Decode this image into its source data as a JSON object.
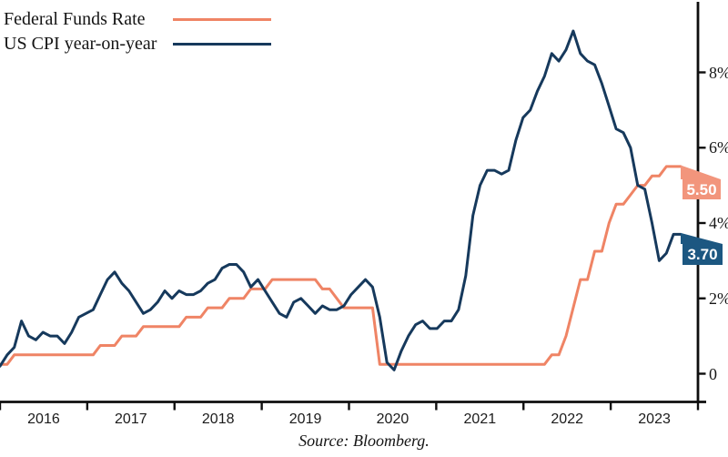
{
  "legend": {
    "items": [
      {
        "label": "Federal Funds Rate",
        "color": "#EF8465"
      },
      {
        "label": "US CPI year-on-year",
        "color": "#16395C"
      }
    ]
  },
  "source": "Source: Bloomberg.",
  "end_labels": {
    "fed": "5.50",
    "cpi": "3.70"
  },
  "colors": {
    "fed_line": "#EF8465",
    "fed_box": "#F2957C",
    "cpi_line": "#16395C",
    "cpi_box": "#1C5781",
    "axis": "#0e0e0e"
  },
  "axis": {
    "y_ticks": [
      {
        "value": 8,
        "label": "8%"
      },
      {
        "value": 6,
        "label": "6%"
      },
      {
        "value": 4,
        "label": "4%"
      },
      {
        "value": 2,
        "label": "2%"
      },
      {
        "value": 0,
        "label": "0"
      }
    ],
    "x_year_labels": [
      "2016",
      "2017",
      "2018",
      "2019",
      "2020",
      "2021",
      "2022",
      "2023"
    ]
  },
  "chart_data": {
    "type": "line",
    "title": "",
    "xlabel": "",
    "ylabel": "%",
    "x_start": "2015-10",
    "x_end": "2023-09",
    "frequency": "monthly",
    "x_tick_labels": [
      "2016",
      "2017",
      "2018",
      "2019",
      "2020",
      "2021",
      "2022",
      "2023"
    ],
    "y_tick_values": [
      0,
      2,
      4,
      6,
      8
    ],
    "ylim": [
      -0.75,
      9.9
    ],
    "grid": false,
    "legend_position": "top-left",
    "end_value_labels": {
      "Federal Funds Rate": 5.5,
      "US CPI year-on-year": 3.7
    },
    "series": [
      {
        "name": "Federal Funds Rate",
        "color": "#EF8465",
        "values": [
          0.25,
          0.25,
          0.5,
          0.5,
          0.5,
          0.5,
          0.5,
          0.5,
          0.5,
          0.5,
          0.5,
          0.5,
          0.5,
          0.5,
          0.75,
          0.75,
          0.75,
          1.0,
          1.0,
          1.0,
          1.25,
          1.25,
          1.25,
          1.25,
          1.25,
          1.25,
          1.5,
          1.5,
          1.5,
          1.75,
          1.75,
          1.75,
          2.0,
          2.0,
          2.0,
          2.25,
          2.25,
          2.25,
          2.5,
          2.5,
          2.5,
          2.5,
          2.5,
          2.5,
          2.5,
          2.25,
          2.25,
          2.0,
          1.75,
          1.75,
          1.75,
          1.75,
          1.75,
          0.25,
          0.25,
          0.25,
          0.25,
          0.25,
          0.25,
          0.25,
          0.25,
          0.25,
          0.25,
          0.25,
          0.25,
          0.25,
          0.25,
          0.25,
          0.25,
          0.25,
          0.25,
          0.25,
          0.25,
          0.25,
          0.25,
          0.25,
          0.25,
          0.5,
          0.5,
          1.0,
          1.75,
          2.5,
          2.5,
          3.25,
          3.25,
          4.0,
          4.5,
          4.5,
          4.75,
          5.0,
          5.0,
          5.25,
          5.25,
          5.5,
          5.5,
          5.5
        ]
      },
      {
        "name": "US CPI year-on-year",
        "color": "#16395C",
        "values": [
          0.2,
          0.5,
          0.7,
          1.4,
          1.0,
          0.9,
          1.1,
          1.0,
          1.0,
          0.8,
          1.1,
          1.5,
          1.6,
          1.7,
          2.1,
          2.5,
          2.7,
          2.4,
          2.2,
          1.9,
          1.6,
          1.7,
          1.9,
          2.2,
          2.0,
          2.2,
          2.1,
          2.1,
          2.2,
          2.4,
          2.5,
          2.8,
          2.9,
          2.9,
          2.7,
          2.3,
          2.5,
          2.2,
          1.9,
          1.6,
          1.5,
          1.9,
          2.0,
          1.8,
          1.6,
          1.8,
          1.7,
          1.7,
          1.8,
          2.1,
          2.3,
          2.5,
          2.3,
          1.5,
          0.3,
          0.1,
          0.6,
          1.0,
          1.3,
          1.4,
          1.2,
          1.2,
          1.4,
          1.4,
          1.7,
          2.6,
          4.2,
          5.0,
          5.4,
          5.4,
          5.3,
          5.4,
          6.2,
          6.8,
          7.0,
          7.5,
          7.9,
          8.5,
          8.3,
          8.6,
          9.1,
          8.5,
          8.3,
          8.2,
          7.7,
          7.1,
          6.5,
          6.4,
          6.0,
          5.0,
          4.9,
          4.0,
          3.0,
          3.2,
          3.7,
          3.7
        ]
      }
    ]
  }
}
